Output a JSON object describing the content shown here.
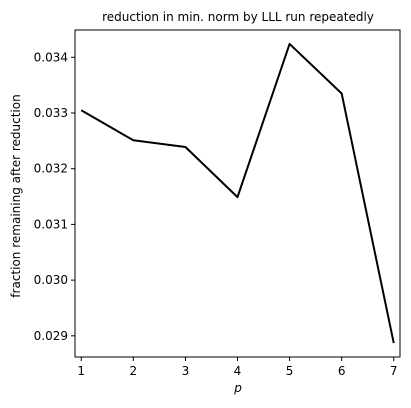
{
  "chart_data": {
    "type": "line",
    "title": "reduction in min. norm by LLL run repeatedly",
    "xlabel": "p",
    "ylabel": "fraction remaining after reduction",
    "x": [
      1,
      2,
      3,
      4,
      5,
      6,
      7
    ],
    "series": [
      {
        "values": [
          0.03305,
          0.03251,
          0.03239,
          0.03149,
          0.03424,
          0.03335,
          0.02887
        ]
      }
    ],
    "xlim": [
      0.88,
      7.12
    ],
    "ylim": [
      0.02862,
      0.03449
    ],
    "xticks": [
      "1",
      "2",
      "3",
      "4",
      "5",
      "6",
      "7"
    ],
    "yticks": [
      "0.029",
      "0.030",
      "0.031",
      "0.032",
      "0.033",
      "0.034"
    ],
    "grid": false,
    "line_color": "#000000"
  }
}
